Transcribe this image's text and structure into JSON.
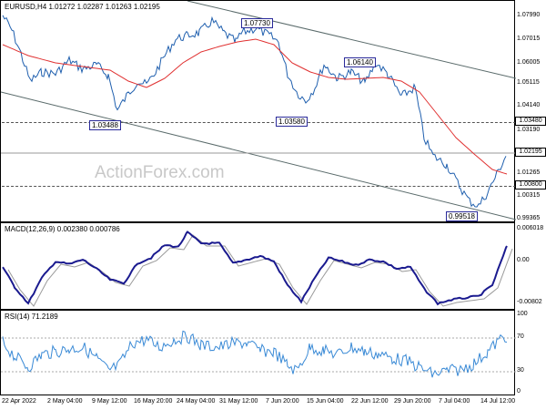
{
  "main": {
    "title": "EURUSD,H4  1.01272 1.02287 1.01263 1.02195",
    "watermark": "ActionForex.com",
    "y_labels": [
      "1.07990",
      "1.07015",
      "1.06005",
      "1.05115",
      "1.04140",
      "1.03190",
      "1.01265",
      "1.00315",
      "0.99365"
    ],
    "boxes": [
      "1.03480",
      "1.02195",
      "1.00800"
    ],
    "annotations": [
      "1.07730",
      "1.06140",
      "1.03488",
      "1.03580",
      "0.99518"
    ],
    "colors": {
      "price": "#1f5fae",
      "ma": "#e03030",
      "channel": "#5a6b6b",
      "box": "#2a2a9a"
    }
  },
  "macd": {
    "title": "MACD(12,26,9) 0.002380 0.000786",
    "y_labels": [
      "0.006018",
      "0.00",
      "-0.00802"
    ],
    "colors": {
      "macd": "#1a1a8f",
      "signal": "#9a9a9a"
    }
  },
  "rsi": {
    "title": "RSI(14) 71.2189",
    "y_labels": [
      "100",
      "70",
      "30",
      "0"
    ],
    "color": "#3a8ad6"
  },
  "xaxis": {
    "labels": [
      "22 Apr 2022",
      "2 May 04:00",
      "9 May 12:00",
      "16 May 20:00",
      "24 May 04:00",
      "31 May 12:00",
      "7 Jun 20:00",
      "15 Jun 04:00",
      "22 Jun 12:00",
      "29 Jun 20:00",
      "7 Jul 04:00",
      "14 Jul 12:00"
    ]
  }
}
